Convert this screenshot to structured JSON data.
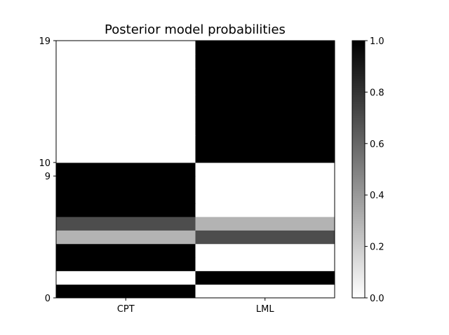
{
  "chart_data": {
    "type": "heatmap",
    "title": "Posterior model probabilities",
    "xlabel": "",
    "ylabel": "",
    "columns": [
      "CPT",
      "LML"
    ],
    "y_ticks": [
      0,
      9,
      10,
      19
    ],
    "ylim": [
      0,
      19
    ],
    "colormap": "gray_r",
    "colorbar": {
      "range": [
        0.0,
        1.0
      ],
      "ticks": [
        "0.0",
        "0.2",
        "0.4",
        "0.6",
        "0.8",
        "1.0"
      ]
    },
    "rows": [
      {
        "row": 0,
        "values": [
          1.0,
          0.0
        ]
      },
      {
        "row": 1,
        "values": [
          0.0,
          1.0
        ]
      },
      {
        "row": 2,
        "values": [
          1.0,
          0.0
        ]
      },
      {
        "row": 3,
        "values": [
          1.0,
          0.0
        ]
      },
      {
        "row": 4,
        "values": [
          0.3,
          0.7
        ]
      },
      {
        "row": 5,
        "values": [
          0.7,
          0.3
        ]
      },
      {
        "row": 6,
        "values": [
          1.0,
          0.0
        ]
      },
      {
        "row": 7,
        "values": [
          1.0,
          0.0
        ]
      },
      {
        "row": 8,
        "values": [
          1.0,
          0.0
        ]
      },
      {
        "row": 9,
        "values": [
          1.0,
          0.0
        ]
      },
      {
        "row": 10,
        "values": [
          0.0,
          1.0
        ]
      },
      {
        "row": 11,
        "values": [
          0.0,
          1.0
        ]
      },
      {
        "row": 12,
        "values": [
          0.0,
          1.0
        ]
      },
      {
        "row": 13,
        "values": [
          0.0,
          1.0
        ]
      },
      {
        "row": 14,
        "values": [
          0.0,
          1.0
        ]
      },
      {
        "row": 15,
        "values": [
          0.0,
          1.0
        ]
      },
      {
        "row": 16,
        "values": [
          0.0,
          1.0
        ]
      },
      {
        "row": 17,
        "values": [
          0.0,
          1.0
        ]
      },
      {
        "row": 18,
        "values": [
          0.0,
          1.0
        ]
      }
    ]
  }
}
